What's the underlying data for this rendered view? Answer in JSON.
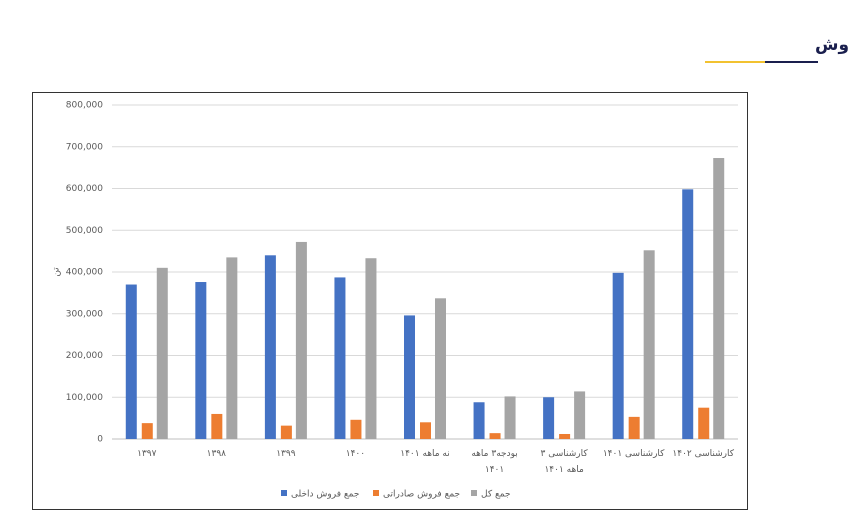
{
  "header": {
    "title": "مقدار فروش"
  },
  "chart_data": {
    "type": "bar",
    "y_label": "تن",
    "categories": [
      "۱۳۹۷",
      "۱۳۹۸",
      "۱۳۹۹",
      "۱۴۰۰",
      "نه ماهه ۱۴۰۱",
      "بودجه۳ ماهه ۱۴۰۱",
      "کارشناسی ۳ ماهه ۱۴۰۱",
      "کارشناسی ۱۴۰۱",
      "کارشناسی ۱۴۰۲"
    ],
    "series": [
      {
        "name": "جمع فروش داخلی",
        "color": "#4472c4",
        "values": [
          370000,
          376000,
          440000,
          387000,
          296000,
          88000,
          100000,
          398000,
          598000
        ]
      },
      {
        "name": "جمع فروش صادراتی",
        "color": "#ed7d31",
        "values": [
          38000,
          60000,
          32000,
          46000,
          40000,
          14000,
          12000,
          53000,
          75000
        ]
      },
      {
        "name": "جمع کل",
        "color": "#a5a5a5",
        "values": [
          410000,
          435000,
          472000,
          433000,
          337000,
          102000,
          114000,
          452000,
          673000
        ]
      }
    ],
    "ylim": [
      0,
      800000
    ],
    "yticks": [
      0,
      {
        "value": 100000,
        "label": "100,000"
      },
      {
        "value": 200000,
        "label": "200,000"
      },
      {
        "value": 300000,
        "label": "300,000"
      },
      {
        "value": 400000,
        "label": "400,000"
      },
      {
        "value": 500000,
        "label": "500,000"
      },
      {
        "value": 600000,
        "label": "600,000"
      },
      {
        "value": 700000,
        "label": "700,000"
      },
      {
        "value": 800000,
        "label": "800,000"
      }
    ],
    "grid": true,
    "legend": "bottom"
  }
}
